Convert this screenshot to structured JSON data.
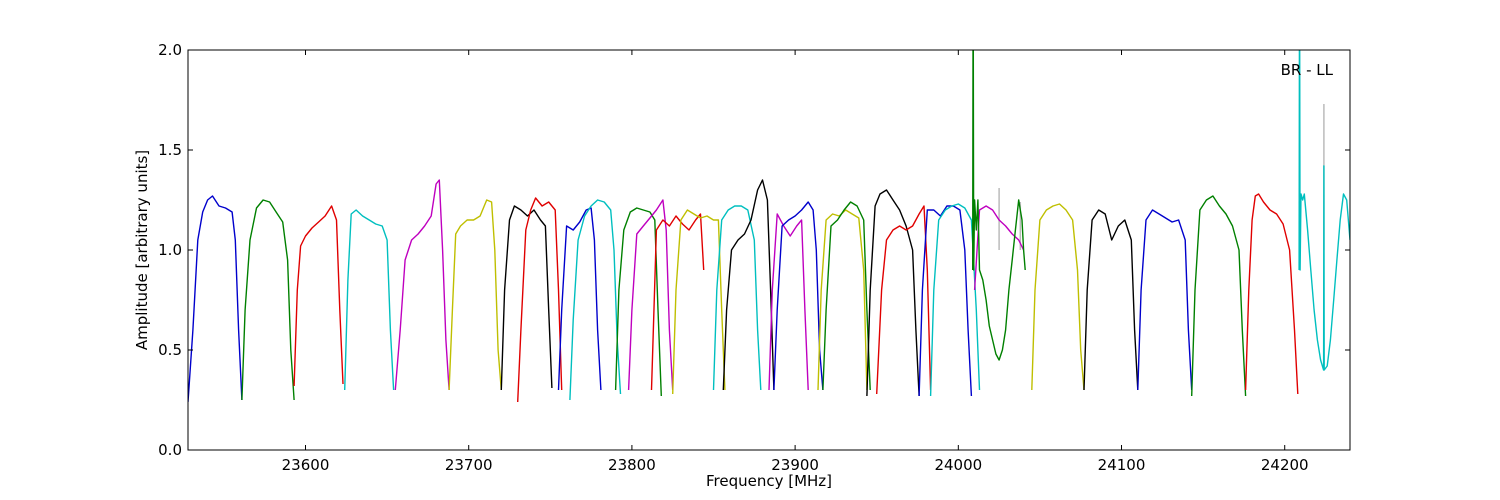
{
  "chart_data": {
    "type": "line",
    "title": "",
    "xlabel": "Frequency [MHz]",
    "ylabel": "Amplitude [arbitrary units]",
    "annotation": "BR - LL",
    "xlim": [
      23528,
      24240
    ],
    "ylim": [
      0.0,
      2.0
    ],
    "xticks": [
      23600,
      23700,
      23800,
      23900,
      24000,
      24100,
      24200
    ],
    "yticks": [
      0.0,
      0.5,
      1.0,
      1.5,
      2.0
    ],
    "ytick_labels": [
      "0.0",
      "0.5",
      "1.0",
      "1.5",
      "2.0"
    ],
    "grid": false,
    "legend": "none",
    "colors": [
      "#0000cc",
      "#008000",
      "#e00000",
      "#00bfbf",
      "#bf00bf",
      "#bfbf00",
      "#000000"
    ],
    "series": [
      {
        "color": "#0000cc",
        "x": [
          23528,
          23531,
          23534,
          23537,
          23540,
          23543,
          23547,
          23551,
          23555,
          23557,
          23559,
          23561
        ],
        "y": [
          0.24,
          0.6,
          1.05,
          1.19,
          1.25,
          1.27,
          1.22,
          1.21,
          1.19,
          1.05,
          0.6,
          0.25
        ]
      },
      {
        "color": "#008000",
        "x": [
          23561,
          23563,
          23566,
          23570,
          23574,
          23578,
          23582,
          23586,
          23589,
          23591,
          23593
        ],
        "y": [
          0.25,
          0.7,
          1.05,
          1.21,
          1.25,
          1.24,
          1.19,
          1.14,
          0.95,
          0.5,
          0.25
        ]
      },
      {
        "color": "#e00000",
        "x": [
          23593,
          23595,
          23597,
          23600,
          23604,
          23608,
          23612,
          23616,
          23619,
          23621,
          23623
        ],
        "y": [
          0.32,
          0.8,
          1.02,
          1.07,
          1.11,
          1.14,
          1.17,
          1.22,
          1.15,
          0.7,
          0.33
        ]
      },
      {
        "color": "#00bfbf",
        "x": [
          23624,
          23626,
          23628,
          23631,
          23635,
          23639,
          23643,
          23647,
          23650,
          23652,
          23654
        ],
        "y": [
          0.3,
          0.85,
          1.18,
          1.2,
          1.17,
          1.15,
          1.13,
          1.12,
          1.05,
          0.6,
          0.3
        ]
      },
      {
        "color": "#bf00bf",
        "x": [
          23655,
          23658,
          23661,
          23665,
          23669,
          23673,
          23677,
          23680,
          23682,
          23684,
          23686,
          23688
        ],
        "y": [
          0.3,
          0.6,
          0.95,
          1.05,
          1.08,
          1.12,
          1.17,
          1.33,
          1.35,
          1.0,
          0.55,
          0.3
        ]
      },
      {
        "color": "#bfbf00",
        "x": [
          23688,
          23690,
          23692,
          23695,
          23699,
          23703,
          23707,
          23711,
          23714,
          23716,
          23718,
          23720
        ],
        "y": [
          0.3,
          0.7,
          1.08,
          1.12,
          1.15,
          1.15,
          1.17,
          1.25,
          1.24,
          1.0,
          0.5,
          0.3
        ]
      },
      {
        "color": "#000000",
        "x": [
          23720,
          23722,
          23725,
          23728,
          23732,
          23736,
          23740,
          23744,
          23747,
          23749,
          23751
        ],
        "y": [
          0.3,
          0.8,
          1.15,
          1.22,
          1.2,
          1.17,
          1.2,
          1.15,
          1.12,
          0.7,
          0.31
        ]
      },
      {
        "color": "#e00000",
        "x": [
          23730,
          23732,
          23735,
          23738,
          23741,
          23745,
          23749,
          23753,
          23755,
          23757
        ],
        "y": [
          0.24,
          0.6,
          1.1,
          1.2,
          1.26,
          1.22,
          1.24,
          1.2,
          0.8,
          0.3
        ]
      },
      {
        "color": "#0000cc",
        "x": [
          23755,
          23757,
          23760,
          23764,
          23768,
          23772,
          23775,
          23777,
          23779,
          23781
        ],
        "y": [
          0.3,
          0.7,
          1.12,
          1.1,
          1.14,
          1.2,
          1.21,
          1.05,
          0.6,
          0.3
        ]
      },
      {
        "color": "#00bfbf",
        "x": [
          23762,
          23764,
          23767,
          23771,
          23775,
          23779,
          23783,
          23787,
          23789,
          23791,
          23793
        ],
        "y": [
          0.25,
          0.65,
          1.05,
          1.17,
          1.22,
          1.25,
          1.24,
          1.2,
          1.0,
          0.55,
          0.28
        ]
      },
      {
        "color": "#008000",
        "x": [
          23790,
          23792,
          23795,
          23799,
          23803,
          23807,
          23811,
          23814,
          23816,
          23818
        ],
        "y": [
          0.3,
          0.8,
          1.1,
          1.19,
          1.21,
          1.2,
          1.19,
          1.15,
          0.7,
          0.27
        ]
      },
      {
        "color": "#bf00bf",
        "x": [
          23798,
          23800,
          23803,
          23807,
          23811,
          23815,
          23819,
          23821,
          23823,
          23825
        ],
        "y": [
          0.3,
          0.7,
          1.08,
          1.12,
          1.16,
          1.2,
          1.25,
          1.1,
          0.6,
          0.3
        ]
      },
      {
        "color": "#e00000",
        "x": [
          23812,
          23815,
          23819,
          23823,
          23827,
          23831,
          23835,
          23839,
          23842,
          23844
        ],
        "y": [
          0.3,
          1.1,
          1.15,
          1.12,
          1.17,
          1.13,
          1.1,
          1.15,
          1.18,
          0.9
        ]
      },
      {
        "color": "#bfbf00",
        "x": [
          23825,
          23827,
          23830,
          23834,
          23838,
          23842,
          23846,
          23850,
          23853,
          23855,
          23857
        ],
        "y": [
          0.28,
          0.8,
          1.15,
          1.2,
          1.18,
          1.16,
          1.17,
          1.15,
          1.15,
          0.7,
          0.3
        ]
      },
      {
        "color": "#00bfbf",
        "x": [
          23850,
          23852,
          23855,
          23859,
          23863,
          23867,
          23871,
          23875,
          23877,
          23879
        ],
        "y": [
          0.3,
          0.8,
          1.15,
          1.2,
          1.22,
          1.22,
          1.2,
          1.05,
          0.6,
          0.3
        ]
      },
      {
        "color": "#000000",
        "x": [
          23856,
          23858,
          23861,
          23865,
          23869,
          23873,
          23877,
          23880,
          23883,
          23885,
          23887
        ],
        "y": [
          0.3,
          0.7,
          1.0,
          1.05,
          1.08,
          1.15,
          1.3,
          1.35,
          1.25,
          0.8,
          0.3
        ]
      },
      {
        "color": "#bf00bf",
        "x": [
          23884,
          23886,
          23889,
          23893,
          23897,
          23901,
          23904,
          23906,
          23908
        ],
        "y": [
          0.3,
          0.8,
          1.18,
          1.12,
          1.07,
          1.12,
          1.15,
          0.7,
          0.3
        ]
      },
      {
        "color": "#0000cc",
        "x": [
          23887,
          23889,
          23892,
          23896,
          23900,
          23904,
          23908,
          23911,
          23913,
          23915,
          23917
        ],
        "y": [
          0.3,
          0.7,
          1.12,
          1.15,
          1.17,
          1.2,
          1.24,
          1.2,
          1.0,
          0.5,
          0.3
        ]
      },
      {
        "color": "#bfbf00",
        "x": [
          23914,
          23916,
          23919,
          23923,
          23927,
          23931,
          23935,
          23939,
          23942,
          23944
        ],
        "y": [
          0.3,
          0.8,
          1.15,
          1.18,
          1.17,
          1.2,
          1.18,
          1.16,
          0.9,
          0.3
        ]
      },
      {
        "color": "#008000",
        "x": [
          23917,
          23919,
          23922,
          23926,
          23930,
          23934,
          23938,
          23942,
          23944,
          23946
        ],
        "y": [
          0.3,
          0.7,
          1.12,
          1.15,
          1.2,
          1.24,
          1.22,
          1.15,
          0.7,
          0.3
        ]
      },
      {
        "color": "#000000",
        "x": [
          23944,
          23946,
          23949,
          23952,
          23956,
          23960,
          23964,
          23968,
          23972,
          23974,
          23976
        ],
        "y": [
          0.27,
          0.8,
          1.22,
          1.28,
          1.3,
          1.25,
          1.2,
          1.12,
          1.0,
          0.6,
          0.27
        ]
      },
      {
        "color": "#e00000",
        "x": [
          23950,
          23953,
          23956,
          23960,
          23964,
          23968,
          23972,
          23976,
          23979,
          23981,
          23983
        ],
        "y": [
          0.28,
          0.8,
          1.05,
          1.1,
          1.12,
          1.1,
          1.12,
          1.18,
          1.22,
          0.9,
          0.3
        ]
      },
      {
        "color": "#0000cc",
        "x": [
          23976,
          23978,
          23981,
          23985,
          23989,
          23993,
          23997,
          24001,
          24004,
          24006,
          24008
        ],
        "y": [
          0.27,
          0.8,
          1.2,
          1.2,
          1.17,
          1.22,
          1.22,
          1.2,
          1.0,
          0.6,
          0.27
        ]
      },
      {
        "color": "#00bfbf",
        "x": [
          23983,
          23985,
          23988,
          23992,
          23996,
          24000,
          24004,
          24008,
          24011,
          24013
        ],
        "y": [
          0.27,
          0.8,
          1.15,
          1.2,
          1.22,
          1.23,
          1.21,
          1.15,
          0.7,
          0.3
        ]
      },
      {
        "color": "#bf00bf",
        "x": [
          24010,
          24013,
          24017,
          24021,
          24025,
          24029,
          24033,
          24037,
          24040
        ],
        "y": [
          0.8,
          1.2,
          1.22,
          1.2,
          1.15,
          1.12,
          1.08,
          1.05,
          1.0
        ]
      },
      {
        "color": "#008000",
        "x": [
          24008.8,
          24009,
          24009.2,
          24009.4,
          24010,
          24011,
          24012,
          24013,
          24015,
          24017,
          24019,
          24021,
          24023,
          24025,
          24027,
          24029,
          24031,
          24033,
          24035,
          24037,
          24038,
          24039,
          24040,
          24041
        ],
        "y": [
          0.9,
          2.0,
          2.0,
          0.9,
          1.25,
          1.1,
          1.25,
          0.9,
          0.85,
          0.75,
          0.62,
          0.55,
          0.48,
          0.45,
          0.5,
          0.6,
          0.8,
          0.95,
          1.1,
          1.25,
          1.2,
          1.15,
          1.0,
          0.9
        ]
      },
      {
        "color": "#bfbf00",
        "x": [
          24045,
          24047,
          24050,
          24054,
          24058,
          24062,
          24066,
          24070,
          24073,
          24075,
          24077
        ],
        "y": [
          0.3,
          0.8,
          1.15,
          1.2,
          1.22,
          1.23,
          1.2,
          1.15,
          0.9,
          0.5,
          0.3
        ]
      },
      {
        "color": "#000000",
        "x": [
          24077,
          24079,
          24082,
          24086,
          24090,
          24094,
          24098,
          24102,
          24106,
          24108,
          24110
        ],
        "y": [
          0.3,
          0.8,
          1.15,
          1.2,
          1.18,
          1.05,
          1.12,
          1.15,
          1.05,
          0.6,
          0.3
        ]
      },
      {
        "color": "#0000cc",
        "x": [
          24110,
          24112,
          24115,
          24119,
          24123,
          24127,
          24131,
          24135,
          24139,
          24141,
          24143
        ],
        "y": [
          0.3,
          0.8,
          1.15,
          1.2,
          1.18,
          1.16,
          1.14,
          1.15,
          1.05,
          0.6,
          0.3
        ]
      },
      {
        "color": "#008000",
        "x": [
          24143,
          24145,
          24148,
          24152,
          24156,
          24160,
          24164,
          24168,
          24172,
          24174,
          24176
        ],
        "y": [
          0.27,
          0.8,
          1.2,
          1.25,
          1.27,
          1.22,
          1.18,
          1.12,
          1.0,
          0.6,
          0.27
        ]
      },
      {
        "color": "#e00000",
        "x": [
          24176,
          24178,
          24180,
          24182,
          24184,
          24187,
          24191,
          24195,
          24199,
          24203,
          24206,
          24208
        ],
        "y": [
          0.3,
          0.8,
          1.15,
          1.27,
          1.28,
          1.24,
          1.2,
          1.18,
          1.13,
          1.0,
          0.6,
          0.28
        ]
      },
      {
        "color": "#00bfbf",
        "x": [
          24208.8,
          24209,
          24209.2,
          24209.4,
          24210,
          24211,
          24212,
          24214,
          24216,
          24218,
          24220,
          24222,
          24223.8,
          24224,
          24224.2,
          24226,
          24228,
          24230,
          24232,
          24234,
          24236,
          24238,
          24240
        ],
        "y": [
          0.9,
          2.0,
          2.0,
          0.9,
          1.28,
          1.25,
          1.28,
          1.1,
          0.9,
          0.7,
          0.55,
          0.45,
          0.4,
          1.42,
          0.4,
          0.42,
          0.55,
          0.75,
          0.95,
          1.15,
          1.28,
          1.25,
          1.05
        ]
      }
    ],
    "overlay_series": [
      {
        "color": "#bbbbbb",
        "x": [
          24025,
          24025
        ],
        "y": [
          1.0,
          1.31
        ]
      },
      {
        "color": "#bbbbbb",
        "x": [
          24038,
          24038
        ],
        "y": [
          1.0,
          1.24
        ]
      },
      {
        "color": "#bbbbbb",
        "x": [
          24224,
          24224
        ],
        "y": [
          1.0,
          1.73
        ]
      }
    ]
  }
}
